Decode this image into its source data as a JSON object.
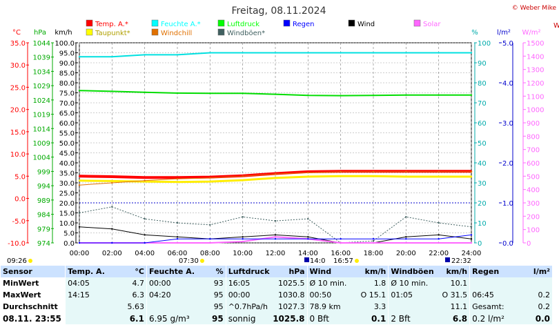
{
  "title": "Freitag, 08.11.2024",
  "credit": "© Weber Mike",
  "axis_units": {
    "temp": "°C",
    "press": "hPa",
    "wind": "km/h",
    "hum": "%",
    "rain": "l/m²",
    "solar": "W/m²"
  },
  "left_axes": {
    "temp": [
      "35.0",
      "30.0",
      "25.0",
      "20.0",
      "15.0",
      "10.0",
      "5.0",
      "0.0",
      "-5.0",
      "-10.0"
    ],
    "press": [
      "1044",
      "1039",
      "1034",
      "1029",
      "1024",
      "1019",
      "1014",
      "1009",
      "1004",
      "999",
      "994",
      "989",
      "984",
      "979",
      "974"
    ],
    "wind": [
      "100.0",
      "95.0",
      "90.0",
      "85.0",
      "80.0",
      "75.0",
      "70.0",
      "65.0",
      "60.0",
      "55.0",
      "50.0",
      "45.0",
      "40.0",
      "35.0",
      "30.0",
      "25.0",
      "20.0",
      "15.0",
      "10.0",
      "5.0",
      "0.0"
    ]
  },
  "right_axes": {
    "hum": [
      "100",
      "90",
      "80",
      "70",
      "60",
      "50",
      "40",
      "30",
      "20",
      "10",
      "0"
    ],
    "rain": [
      "5.0",
      "4.0",
      "3.0",
      "2.0",
      "1.0",
      "0.0"
    ],
    "solar": [
      "1500",
      "1400",
      "1300",
      "1200",
      "1100",
      "1000",
      "900",
      "800",
      "700",
      "600",
      "500",
      "400",
      "300",
      "200",
      "100",
      "0"
    ],
    "extra_letter": "W"
  },
  "x_ticks": [
    "00:00",
    "02:00",
    "04:00",
    "06:00",
    "08:00",
    "10:00",
    "12:00",
    "14:00",
    "16:00",
    "18:00",
    "20:00",
    "22:00",
    "24:00"
  ],
  "legend": [
    {
      "label": "Temp. A.*",
      "color": "#ff0000"
    },
    {
      "label": "Feuchte A.*",
      "color": "#00ffff"
    },
    {
      "label": "Luftdruck",
      "color": "#00ff00"
    },
    {
      "label": "Regen",
      "color": "#0000ff"
    },
    {
      "label": "Wind",
      "color": "#000000"
    },
    {
      "label": "Solar",
      "color": "#ff66ff"
    },
    {
      "label": "Taupunkt*",
      "color": "#ffff00"
    },
    {
      "label": "Windchill",
      "color": "#e07000"
    },
    {
      "label": "Windböen*",
      "color": "#406060"
    }
  ],
  "sun_markers": {
    "sunrise": "07:30",
    "sunset": "16:57",
    "mid": "14:0",
    "start": "09:26",
    "end": "22:32"
  },
  "chart_data": {
    "type": "line",
    "title": "Freitag, 08.11.2024",
    "x": [
      "00:00",
      "02:00",
      "04:00",
      "06:00",
      "08:00",
      "10:00",
      "12:00",
      "14:00",
      "16:00",
      "18:00",
      "20:00",
      "22:00",
      "24:00"
    ],
    "series": [
      {
        "name": "Temp. A.*",
        "unit": "°C",
        "values": [
          5.0,
          4.9,
          4.7,
          4.7,
          4.8,
          5.1,
          5.6,
          6.0,
          6.1,
          6.1,
          6.1,
          6.1,
          6.1
        ]
      },
      {
        "name": "Taupunkt*",
        "unit": "°C",
        "values": [
          4.0,
          3.9,
          3.8,
          3.7,
          3.8,
          4.1,
          4.6,
          4.9,
          5.0,
          5.0,
          4.9,
          4.9,
          4.9
        ]
      },
      {
        "name": "Windchill",
        "unit": "°C",
        "values": [
          3.0,
          3.5,
          4.0,
          4.4,
          4.6,
          5.0,
          5.5,
          5.8,
          6.0,
          6.0,
          6.0,
          6.0,
          6.0
        ]
      },
      {
        "name": "Feuchte A.*",
        "unit": "%",
        "values": [
          93,
          93,
          94,
          94,
          95,
          95,
          95,
          95,
          95,
          95,
          95,
          95,
          95
        ]
      },
      {
        "name": "Luftdruck",
        "unit": "hPa",
        "values": [
          1027.3,
          1027.0,
          1026.7,
          1026.4,
          1026.3,
          1026.3,
          1026.0,
          1025.6,
          1025.5,
          1025.6,
          1025.7,
          1025.7,
          1025.7
        ]
      },
      {
        "name": "Wind",
        "unit": "km/h",
        "values": [
          8,
          7,
          4,
          3,
          2,
          3,
          4,
          3,
          0,
          0,
          3,
          4,
          2
        ]
      },
      {
        "name": "Windböen*",
        "unit": "km/h",
        "values": [
          15,
          18,
          12,
          10,
          9,
          13,
          11,
          12,
          0,
          1,
          13,
          10,
          8
        ]
      },
      {
        "name": "Solar",
        "unit": "W/m²",
        "values": [
          0,
          0,
          0,
          0,
          0,
          10,
          45,
          30,
          0,
          0,
          0,
          0,
          0
        ]
      },
      {
        "name": "Regen",
        "unit": "l/m²",
        "values": [
          0,
          0,
          0,
          0.1,
          0.1,
          0.1,
          0.1,
          0.1,
          0.1,
          0.1,
          0.1,
          0.1,
          0.2
        ]
      }
    ],
    "ylim_temp": [
      -10,
      35
    ],
    "ylim_press": [
      974,
      1044
    ],
    "ylim_wind": [
      0,
      100
    ],
    "ylim_hum": [
      0,
      100
    ],
    "ylim_rain": [
      0,
      5
    ],
    "ylim_solar": [
      0,
      1500
    ],
    "grid": true
  },
  "stats": {
    "headers": [
      "Sensor",
      "Temp. A.",
      "°C",
      "Feuchte A.",
      "%",
      "Luftdruck",
      "hPa",
      "Wind",
      "km/h",
      "Windböen",
      "km/h",
      "Regen",
      "l/m²"
    ],
    "rows": [
      {
        "label": "MinWert",
        "cells": [
          [
            "04:05",
            "4.7"
          ],
          [
            "00:00",
            "93"
          ],
          [
            "16:05",
            "1025.5"
          ],
          [
            "Ø 10 min.",
            "1.8"
          ],
          [
            "Ø 10 min.",
            "10.1"
          ],
          [
            "",
            ""
          ]
        ]
      },
      {
        "label": "MaxWert",
        "cells": [
          [
            "14:15",
            "6.3"
          ],
          [
            "04:20",
            "95"
          ],
          [
            "00:00",
            "1030.8"
          ],
          [
            "00:50",
            "O 15.1"
          ],
          [
            "01:05",
            "O 31.5"
          ],
          [
            "06:45",
            "0.2"
          ]
        ]
      },
      {
        "label": "Durchschnitt",
        "cells": [
          [
            "",
            "5.63"
          ],
          [
            "",
            "95"
          ],
          [
            "^0.7hPa/h",
            "1027.3"
          ],
          [
            "78.9 km",
            "3.3"
          ],
          [
            "",
            "11.1"
          ],
          [
            "Gesamt:",
            "0.2"
          ]
        ]
      },
      {
        "label": "08.11. 23:55",
        "cells": [
          [
            "",
            "6.1"
          ],
          [
            "6.95 g/m³",
            "95"
          ],
          [
            "sonnig",
            "1025.8"
          ],
          [
            "0 Bft",
            "0.1"
          ],
          [
            "2 Bft",
            "6.8"
          ],
          [
            "0.2 l/m²",
            "0.0"
          ]
        ]
      }
    ]
  }
}
